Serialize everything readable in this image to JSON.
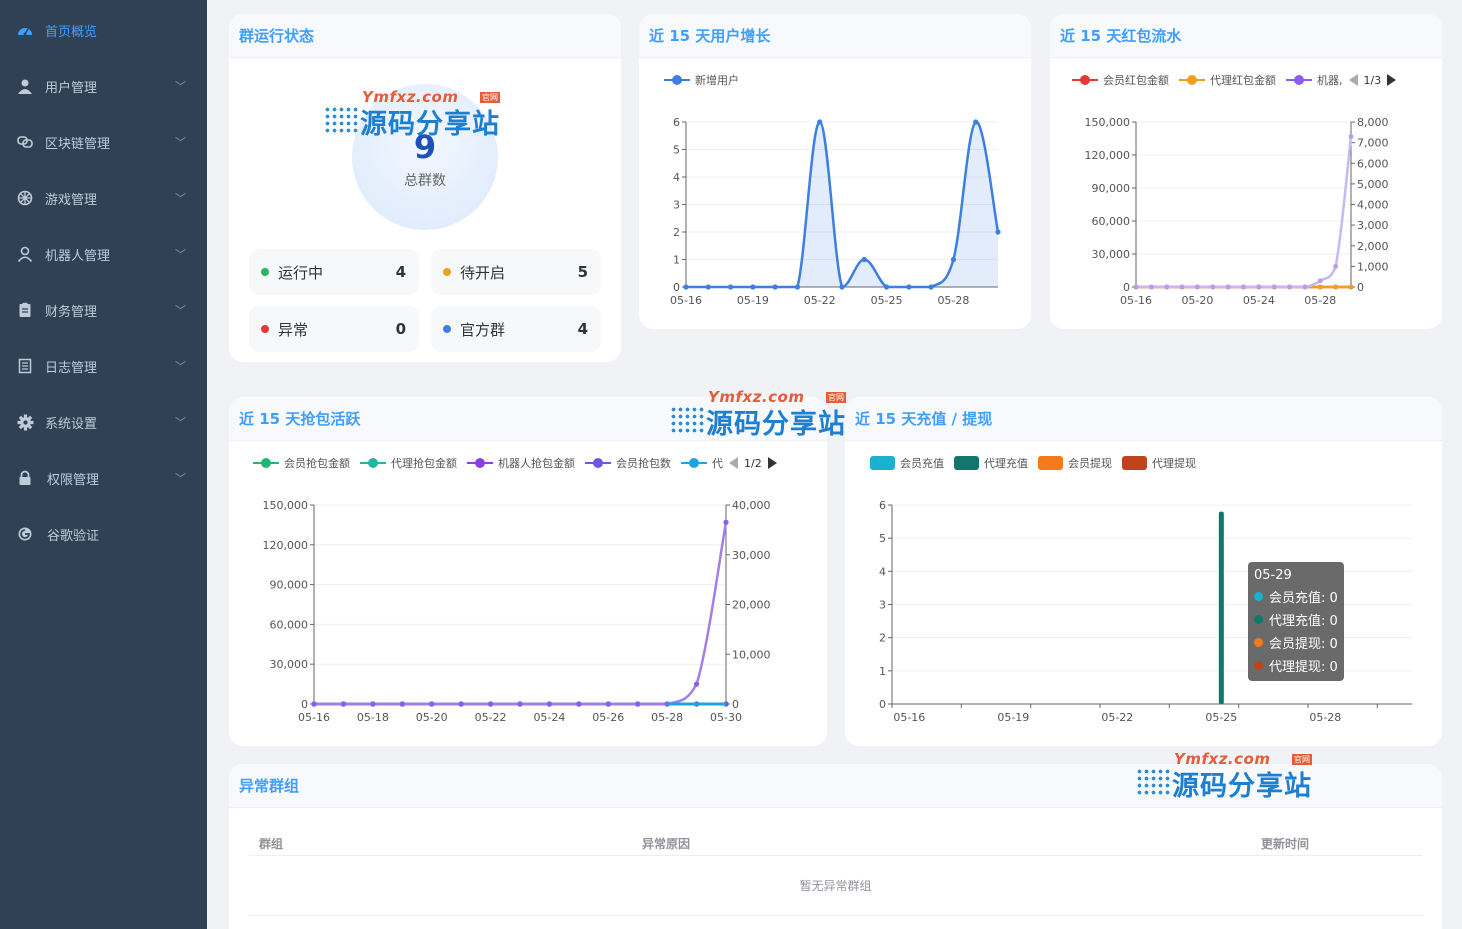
{
  "sidebar": {
    "items": [
      {
        "label": "首页概览",
        "icon": "dashboard-icon",
        "active": true
      },
      {
        "label": "用户管理",
        "icon": "user-icon"
      },
      {
        "label": "区块链管理",
        "icon": "link-icon"
      },
      {
        "label": "游戏管理",
        "icon": "wheel-icon"
      },
      {
        "label": "机器人管理",
        "icon": "robot-user-icon"
      },
      {
        "label": "财务管理",
        "icon": "clipboard-icon"
      },
      {
        "label": "日志管理",
        "icon": "document-icon"
      },
      {
        "label": "系统设置",
        "icon": "gear-icon"
      },
      {
        "label": "权限管理",
        "icon": "lock-icon"
      },
      {
        "label": "谷歌验证",
        "icon": "google-icon"
      }
    ]
  },
  "status": {
    "title": "群运行状态",
    "total": "9",
    "total_label": "总群数",
    "tiles": [
      {
        "label": "运行中",
        "value": "4",
        "color": "#2db55d"
      },
      {
        "label": "待开启",
        "value": "5",
        "color": "#f0a020"
      },
      {
        "label": "异常",
        "value": "0",
        "color": "#e53935"
      },
      {
        "label": "官方群",
        "value": "4",
        "color": "#3d7fe0"
      }
    ]
  },
  "watermark": {
    "url": "Ymfxz.com",
    "badge": "官网",
    "text": "源码分享站"
  },
  "user_growth": {
    "title": "近 15 天用户增长",
    "legend": "新增用户",
    "color": "#3d7fe0"
  },
  "redpacket_flow": {
    "title": "近 15 天红包流水",
    "legend": [
      "会员红包金额",
      "代理红包金额",
      "机器,"
    ],
    "legend_colors": [
      "#e53935",
      "#f0a020",
      "#8b5cf6"
    ],
    "pager": "1/3"
  },
  "grab_activity": {
    "title": "近 15 天抢包活跃",
    "legend": [
      "会员抢包金额",
      "代理抢包金额",
      "机器人抢包金额",
      "会员抢包数",
      "代"
    ],
    "legend_colors": [
      "#22b573",
      "#26b5a0",
      "#8b3fe0",
      "#6a5ae0",
      "#1ea4e0"
    ],
    "pager": "1/2"
  },
  "recharge": {
    "title": "近 15 天充值 / 提现",
    "legend": [
      "会员充值",
      "代理充值",
      "会员提现",
      "代理提现"
    ],
    "legend_colors": [
      "#1ab0d0",
      "#11766b",
      "#f57a1a",
      "#c0441a"
    ],
    "tooltip": {
      "date": "05-29",
      "rows": [
        "会员充值: 0",
        "代理充值: 0",
        "会员提现: 0",
        "代理提现: 0"
      ]
    }
  },
  "abnormal": {
    "title": "异常群组",
    "columns": [
      "群组",
      "异常原因",
      "更新时间"
    ],
    "empty_text": "暂无异常群组"
  },
  "chart_data": [
    {
      "type": "area",
      "title": "近 15 天用户增长",
      "x": [
        "05-16",
        "05-17",
        "05-18",
        "05-19",
        "05-20",
        "05-21",
        "05-22",
        "05-23",
        "05-24",
        "05-25",
        "05-26",
        "05-27",
        "05-28",
        "05-29",
        "05-30"
      ],
      "x_tick_labels": [
        "05-16",
        "05-19",
        "05-22",
        "05-25",
        "05-28"
      ],
      "series": [
        {
          "name": "新增用户",
          "values": [
            0,
            0,
            0,
            0,
            0,
            0,
            6,
            0,
            1,
            0,
            0,
            0,
            1,
            6,
            2
          ]
        }
      ],
      "ylim": [
        0,
        6
      ],
      "yticks": [
        "0",
        "1",
        "2",
        "3",
        "4",
        "5",
        "6"
      ]
    },
    {
      "type": "line",
      "title": "近 15 天红包流水",
      "x": [
        "05-16",
        "05-17",
        "05-18",
        "05-19",
        "05-20",
        "05-21",
        "05-22",
        "05-23",
        "05-24",
        "05-25",
        "05-26",
        "05-27",
        "05-28",
        "05-29",
        "05-30"
      ],
      "x_tick_labels": [
        "05-16",
        "05-20",
        "05-24",
        "05-28"
      ],
      "series": [
        {
          "name": "会员红包金额",
          "axis": "left",
          "values": [
            0,
            0,
            0,
            0,
            0,
            0,
            0,
            0,
            0,
            0,
            0,
            0,
            0,
            0,
            0
          ]
        },
        {
          "name": "代理红包金额",
          "axis": "left",
          "values": [
            0,
            0,
            0,
            0,
            0,
            0,
            0,
            0,
            0,
            0,
            0,
            0,
            0,
            0,
            0
          ]
        },
        {
          "axis": "right",
          "values": [
            0,
            0,
            0,
            0,
            0,
            0,
            0,
            0,
            0,
            0,
            0,
            0,
            300,
            1000,
            7300
          ]
        }
      ],
      "ylim_left": [
        0,
        150000
      ],
      "yticks_left": [
        "0",
        "30,000",
        "60,000",
        "90,000",
        "120,000",
        "150,000"
      ],
      "ylim_right": [
        0,
        8000
      ],
      "yticks_right": [
        "0",
        "1,000",
        "2,000",
        "3,000",
        "4,000",
        "5,000",
        "6,000",
        "7,000",
        "8,000"
      ]
    },
    {
      "type": "line",
      "title": "近 15 天抢包活跃",
      "x": [
        "05-16",
        "05-17",
        "05-18",
        "05-19",
        "05-20",
        "05-21",
        "05-22",
        "05-23",
        "05-24",
        "05-25",
        "05-26",
        "05-27",
        "05-28",
        "05-29",
        "05-30"
      ],
      "x_tick_labels": [
        "05-16",
        "05-18",
        "05-20",
        "05-22",
        "05-24",
        "05-26",
        "05-28",
        "05-30"
      ],
      "series": [
        {
          "name": "会员抢包金额",
          "axis": "left",
          "values": [
            0,
            0,
            0,
            0,
            0,
            0,
            0,
            0,
            0,
            0,
            0,
            0,
            0,
            0,
            0
          ]
        },
        {
          "name": "代理抢包金额",
          "axis": "left",
          "values": [
            0,
            0,
            0,
            0,
            0,
            0,
            0,
            0,
            0,
            0,
            0,
            0,
            0,
            0,
            0
          ]
        },
        {
          "name": "机器人抢包金额",
          "axis": "left",
          "values": [
            0,
            0,
            0,
            0,
            0,
            0,
            0,
            0,
            0,
            0,
            0,
            0,
            0,
            15000,
            137000
          ]
        },
        {
          "name": "会员抢包数",
          "axis": "right",
          "values": [
            0,
            0,
            0,
            0,
            0,
            0,
            0,
            0,
            0,
            0,
            0,
            0,
            0,
            0,
            0
          ]
        }
      ],
      "ylim_left": [
        0,
        150000
      ],
      "yticks_left": [
        "0",
        "30,000",
        "60,000",
        "90,000",
        "120,000",
        "150,000"
      ],
      "ylim_right": [
        0,
        40000
      ],
      "yticks_right": [
        "0",
        "10,000",
        "20,000",
        "30,000",
        "40,000"
      ]
    },
    {
      "type": "bar",
      "title": "近 15 天充值 / 提现",
      "x": [
        "05-16",
        "05-17",
        "05-18",
        "05-19",
        "05-20",
        "05-21",
        "05-22",
        "05-23",
        "05-24",
        "05-25",
        "05-26",
        "05-27",
        "05-28",
        "05-29",
        "05-30"
      ],
      "x_tick_labels": [
        "05-16",
        "05-19",
        "05-22",
        "05-25",
        "05-28"
      ],
      "series": [
        {
          "name": "会员充值",
          "values": [
            0,
            0,
            0,
            0,
            0,
            0,
            0,
            0,
            0,
            0,
            0,
            0,
            0,
            0,
            0
          ]
        },
        {
          "name": "代理充值",
          "values": [
            0,
            0,
            0,
            0,
            0,
            0,
            0,
            0,
            0,
            5.8,
            0,
            0,
            0,
            0,
            0
          ]
        },
        {
          "name": "会员提现",
          "values": [
            0,
            0,
            0,
            0,
            0,
            0,
            0,
            0,
            0,
            0,
            0,
            0,
            0,
            0,
            0
          ]
        },
        {
          "name": "代理提现",
          "values": [
            0,
            0,
            0,
            0,
            0,
            0,
            0,
            0,
            0,
            0,
            0,
            0,
            0,
            0,
            0
          ]
        }
      ],
      "ylim": [
        0,
        6
      ],
      "yticks": [
        "0",
        "1",
        "2",
        "3",
        "4",
        "5",
        "6"
      ]
    }
  ]
}
